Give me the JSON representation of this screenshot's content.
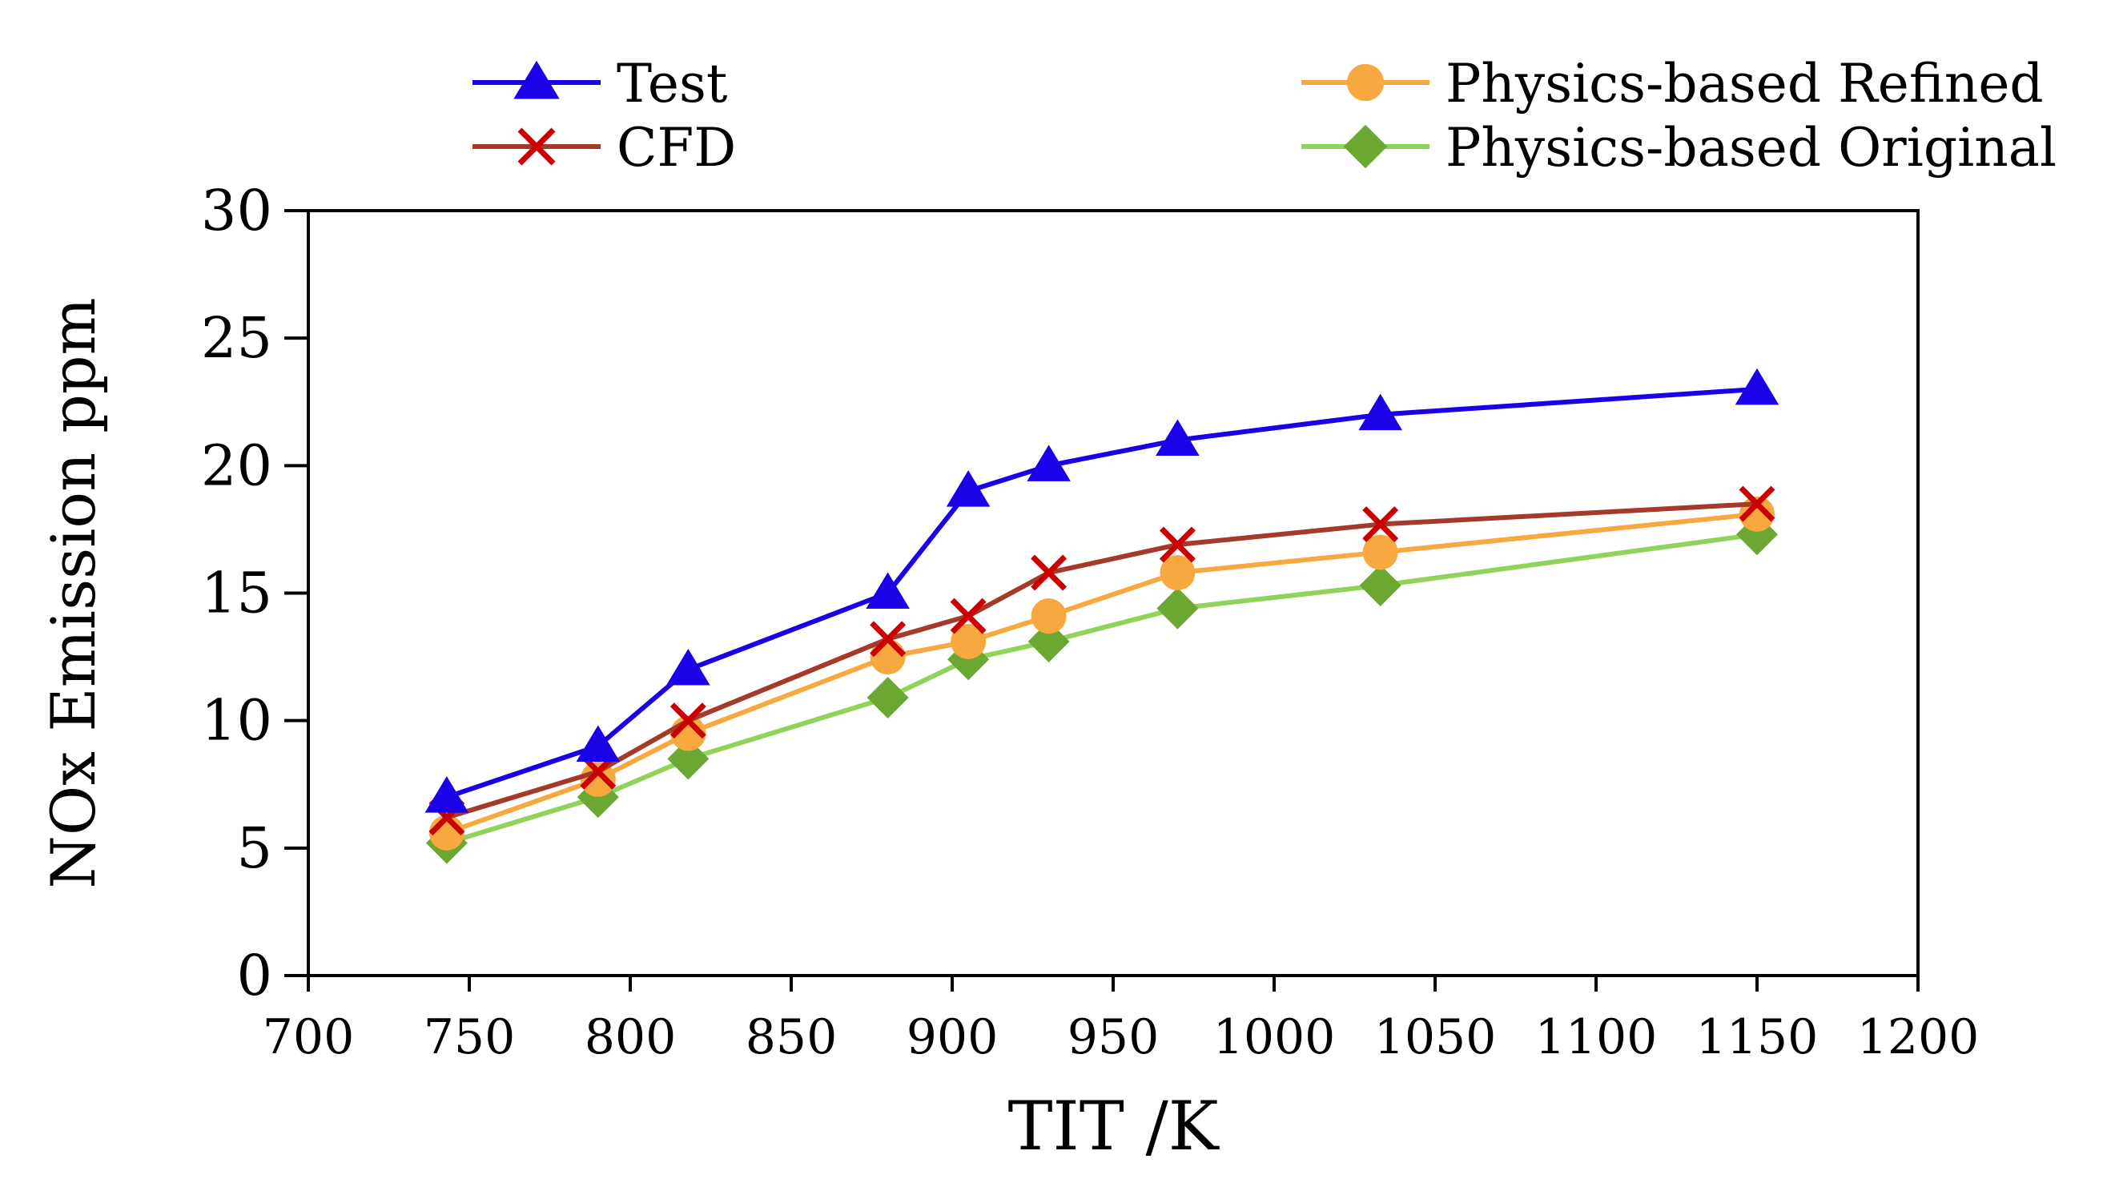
{
  "chart_data": {
    "type": "line",
    "xlabel": "TIT /K",
    "ylabel": "NOx Emission ppm",
    "xlim": [
      700,
      1200
    ],
    "ylim": [
      0,
      30
    ],
    "xticks": [
      700,
      750,
      800,
      850,
      900,
      950,
      1000,
      1050,
      1100,
      1150,
      1200
    ],
    "yticks": [
      0,
      5,
      10,
      15,
      20,
      25,
      30
    ],
    "grid": false,
    "legend_position": "top",
    "series": [
      {
        "name": "Test",
        "color": "#1a00e6",
        "marker": "triangle",
        "points": [
          [
            743,
            7.0
          ],
          [
            790,
            9.0
          ],
          [
            818,
            12.0
          ],
          [
            880,
            15.0
          ],
          [
            905,
            19.0
          ],
          [
            930,
            20.0
          ],
          [
            970,
            21.0
          ],
          [
            1033,
            22.0
          ],
          [
            1150,
            23.0
          ]
        ]
      },
      {
        "name": "CFD",
        "color": "#a33a2a",
        "marker_color": "#cc0000",
        "marker": "x",
        "points": [
          [
            743,
            6.2
          ],
          [
            790,
            8.0
          ],
          [
            818,
            10.0
          ],
          [
            880,
            13.2
          ],
          [
            905,
            14.1
          ],
          [
            930,
            15.8
          ],
          [
            970,
            16.9
          ],
          [
            1033,
            17.7
          ],
          [
            1150,
            18.5
          ]
        ]
      },
      {
        "name": "Physics-based Refined",
        "color": "#f7a940",
        "marker": "circle",
        "points": [
          [
            743,
            5.6
          ],
          [
            790,
            7.7
          ],
          [
            818,
            9.5
          ],
          [
            880,
            12.5
          ],
          [
            905,
            13.1
          ],
          [
            930,
            14.1
          ],
          [
            970,
            15.8
          ],
          [
            1033,
            16.6
          ],
          [
            1150,
            18.1
          ]
        ]
      },
      {
        "name": "Physics-based Original",
        "color": "#8fd35a",
        "marker_color": "#6aa832",
        "marker": "diamond",
        "points": [
          [
            743,
            5.2
          ],
          [
            790,
            7.0
          ],
          [
            818,
            8.5
          ],
          [
            880,
            10.9
          ],
          [
            905,
            12.4
          ],
          [
            930,
            13.1
          ],
          [
            970,
            14.4
          ],
          [
            1033,
            15.3
          ],
          [
            1150,
            17.3
          ]
        ]
      }
    ]
  }
}
